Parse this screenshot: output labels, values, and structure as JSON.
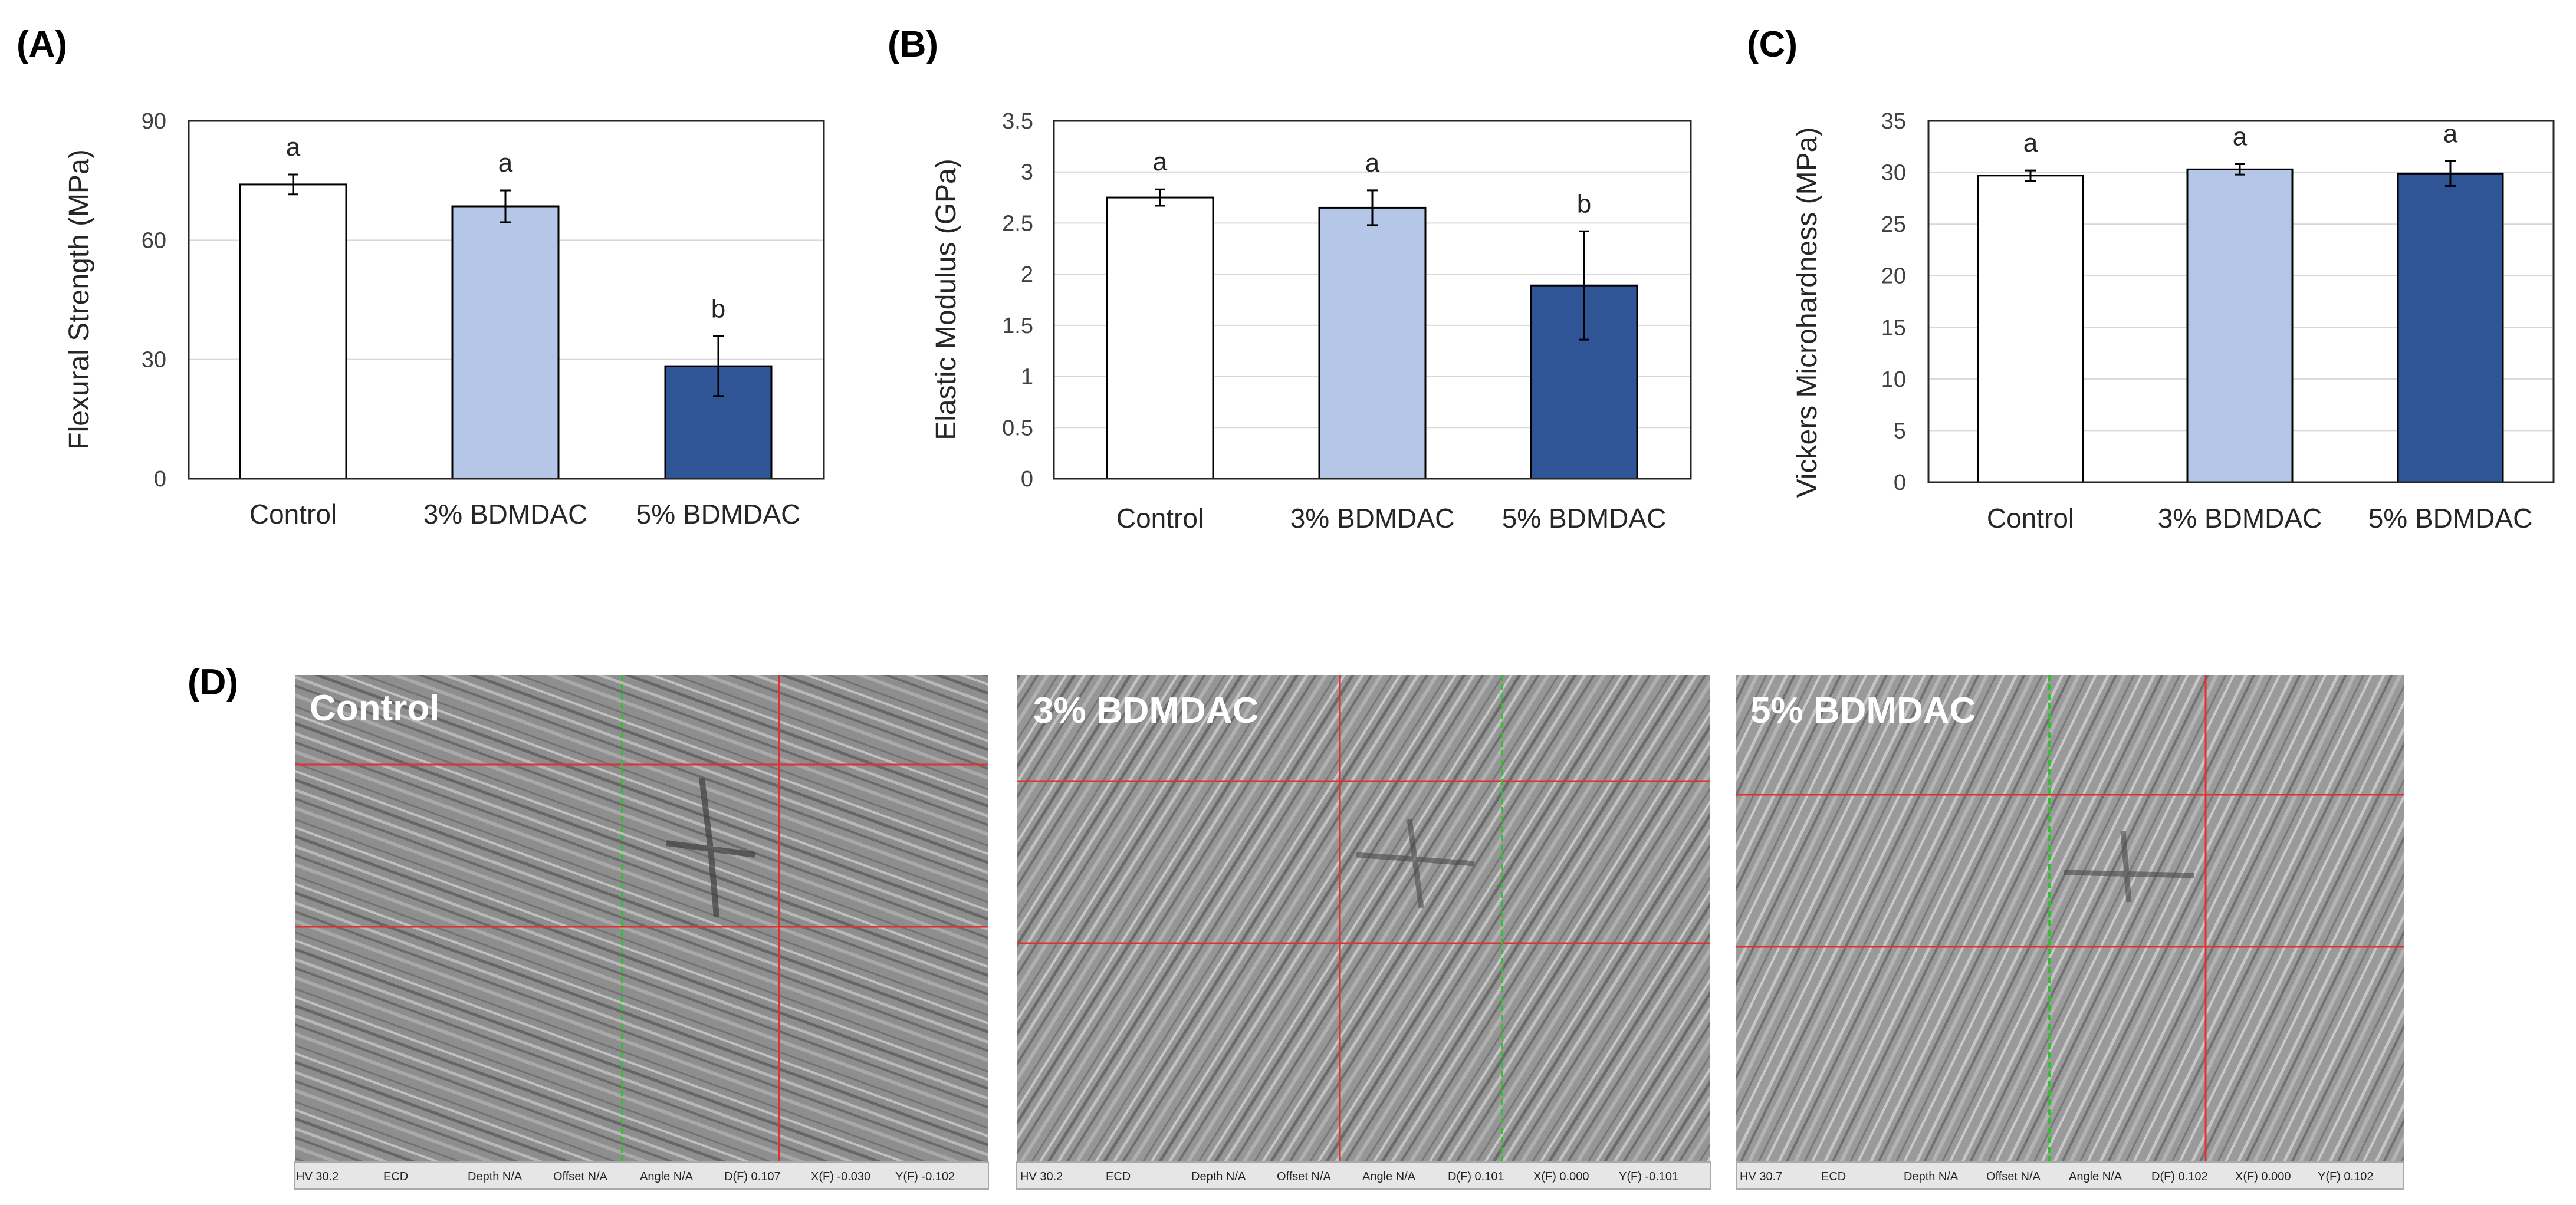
{
  "chart_data": [
    {
      "type": "bar",
      "panel": "(A)",
      "ylabel": "Flexural Strength (MPa)",
      "ylim": [
        0,
        90
      ],
      "yticks": [
        "0",
        "30",
        "60",
        "90"
      ],
      "categories": [
        "Control",
        "3% BDMDAC",
        "5% BDMDAC"
      ],
      "values": [
        74,
        68.5,
        28.3
      ],
      "errors": [
        2.5,
        4,
        7.5
      ],
      "significance": [
        "a",
        "a",
        "b"
      ]
    },
    {
      "type": "bar",
      "panel": "(B)",
      "ylabel": "Elastic Modulus (GPa)",
      "ylim": [
        0,
        3.5
      ],
      "yticks": [
        "0",
        "0.5",
        "1",
        "1.5",
        "2",
        "2.5",
        "3",
        "3.5"
      ],
      "categories": [
        "Control",
        "3% BDMDAC",
        "5% BDMDAC"
      ],
      "values": [
        2.75,
        2.65,
        1.89
      ],
      "errors": [
        0.08,
        0.17,
        0.53
      ],
      "significance": [
        "a",
        "a",
        "b"
      ]
    },
    {
      "type": "bar",
      "panel": "(C)",
      "ylabel": "Vickers Microhardness (MPa)",
      "ylim": [
        0,
        35
      ],
      "yticks": [
        "0",
        "5",
        "10",
        "15",
        "20",
        "25",
        "30",
        "35"
      ],
      "categories": [
        "Control",
        "3% BDMDAC",
        "5% BDMDAC"
      ],
      "values": [
        29.7,
        30.3,
        29.9
      ],
      "errors": [
        0.5,
        0.5,
        1.2
      ],
      "significance": [
        "a",
        "a",
        "a"
      ]
    }
  ],
  "colors": {
    "control": "#ffffff",
    "bdmdac3": "#b4c7e7",
    "bdmdac5": "#2f5597"
  },
  "micrographs": {
    "panel_label": "(D)",
    "images": [
      {
        "title": "Control",
        "status": [
          "HV 30.2",
          "ECD",
          "Depth N/A",
          "Offset N/A",
          "Angle N/A",
          "D(F) 0.107",
          "X(F) -0.030",
          "Y(F) -0.102"
        ]
      },
      {
        "title": "3% BDMDAC",
        "status": [
          "HV 30.2",
          "ECD",
          "Depth N/A",
          "Offset N/A",
          "Angle N/A",
          "D(F) 0.101",
          "X(F) 0.000",
          "Y(F) -0.101"
        ]
      },
      {
        "title": "5% BDMDAC",
        "status": [
          "HV 30.7",
          "ECD",
          "Depth N/A",
          "Offset N/A",
          "Angle N/A",
          "D(F) 0.102",
          "X(F) 0.000",
          "Y(F) 0.102"
        ]
      }
    ]
  }
}
